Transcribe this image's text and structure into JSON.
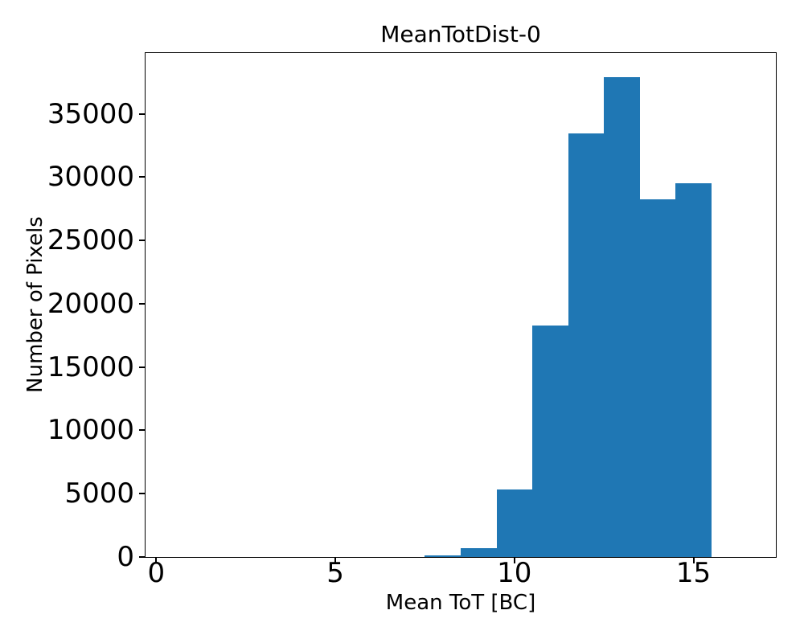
{
  "chart_data": {
    "type": "bar",
    "title": "MeanTotDist-0",
    "xlabel": "Mean ToT [BC]",
    "ylabel": "Number of Pixels",
    "bar_color": "#1f77b4",
    "axis_color": "#000000",
    "background_color": "#ffffff",
    "grid": false,
    "xlim": [
      -0.3,
      17.3
    ],
    "ylim": [
      0,
      39800
    ],
    "xticks": [
      0,
      5,
      10,
      15
    ],
    "yticks": [
      0,
      5000,
      10000,
      15000,
      20000,
      25000,
      30000,
      35000
    ],
    "bin_width": 1.0,
    "bins": [
      {
        "x0": 7.5,
        "x1": 8.5,
        "count": 100
      },
      {
        "x0": 8.5,
        "x1": 9.5,
        "count": 670
      },
      {
        "x0": 9.5,
        "x1": 10.5,
        "count": 5340
      },
      {
        "x0": 10.5,
        "x1": 11.5,
        "count": 18260
      },
      {
        "x0": 11.5,
        "x1": 12.5,
        "count": 33460
      },
      {
        "x0": 12.5,
        "x1": 13.5,
        "count": 37870
      },
      {
        "x0": 13.5,
        "x1": 14.5,
        "count": 28230
      },
      {
        "x0": 14.5,
        "x1": 15.5,
        "count": 29540
      }
    ]
  }
}
